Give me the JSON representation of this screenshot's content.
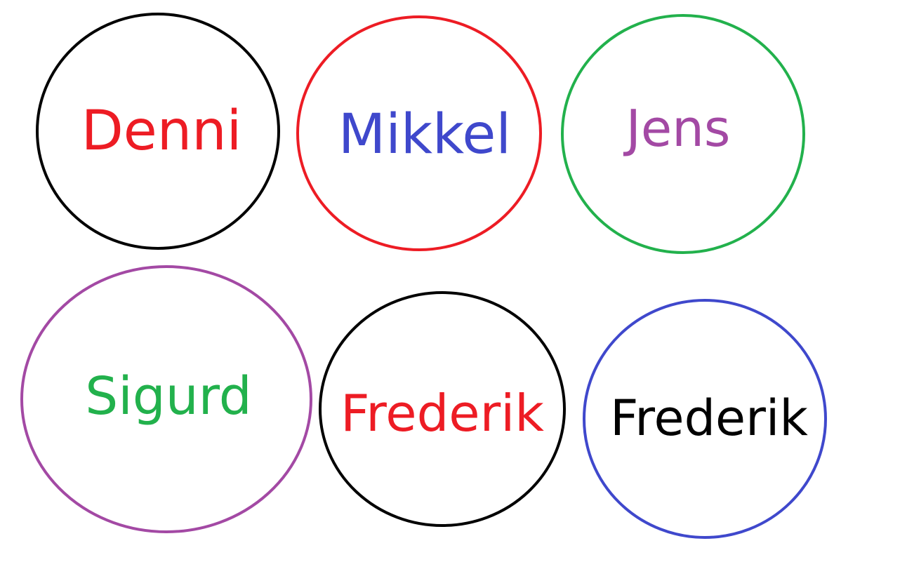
{
  "circles": [
    {
      "name": "Denni",
      "text_color": "#ed1c24",
      "stroke_color": "#000000"
    },
    {
      "name": "Mikkel",
      "text_color": "#3f48cc",
      "stroke_color": "#ed1c24"
    },
    {
      "name": "Jens",
      "text_color": "#a349a4",
      "stroke_color": "#22b14c"
    },
    {
      "name": "Sigurd",
      "text_color": "#22b14c",
      "stroke_color": "#a349a4"
    },
    {
      "name": "Frederik",
      "text_color": "#ed1c24",
      "stroke_color": "#000000"
    },
    {
      "name": "Frederik",
      "text_color": "#000000",
      "stroke_color": "#3f48cc"
    }
  ]
}
